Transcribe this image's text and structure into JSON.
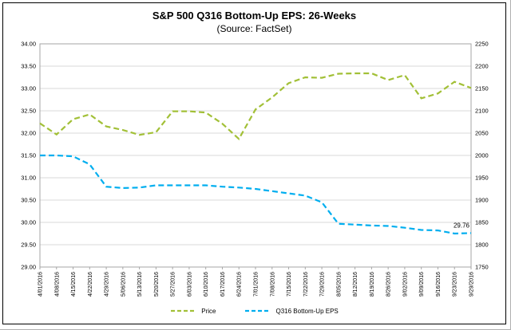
{
  "window": {
    "background": "#FFFFFF",
    "border_color": "#000000"
  },
  "chart_data": {
    "type": "line",
    "title": "S&P 500 Q316 Bottom-Up EPS: 26-Weeks",
    "subtitle": "(Source: FactSet)",
    "x": [
      "4/01/2016",
      "4/08/2016",
      "4/15/2016",
      "4/22/2016",
      "4/29/2016",
      "5/06/2016",
      "5/13/2016",
      "5/20/2016",
      "5/27/2016",
      "6/03/2016",
      "6/10/2016",
      "6/17/2016",
      "6/24/2016",
      "7/01/2016",
      "7/08/2016",
      "7/15/2016",
      "7/22/2016",
      "7/29/2016",
      "8/05/2016",
      "8/12/2016",
      "8/19/2016",
      "8/26/2016",
      "9/02/2016",
      "9/09/2016",
      "9/16/2016",
      "9/23/2016",
      "9/29/2016"
    ],
    "series": [
      {
        "name": "Price",
        "axis": "right",
        "color": "#A2C037",
        "line_style": "dashed",
        "values": [
          2072,
          2047,
          2081,
          2092,
          2065,
          2057,
          2046,
          2052,
          2099,
          2099,
          2096,
          2071,
          2037,
          2103,
          2130,
          2162,
          2175,
          2174,
          2183,
          2184,
          2184,
          2169,
          2180,
          2128,
          2139,
          2165,
          2151
        ]
      },
      {
        "name": "Q316 Bottom-Up EPS",
        "axis": "left",
        "color": "#00AEEF",
        "line_style": "dashed",
        "values": [
          31.5,
          31.5,
          31.48,
          31.3,
          30.8,
          30.77,
          30.78,
          30.83,
          30.83,
          30.83,
          30.83,
          30.8,
          30.78,
          30.75,
          30.7,
          30.65,
          30.6,
          30.45,
          29.97,
          29.95,
          29.93,
          29.92,
          29.88,
          29.83,
          29.82,
          29.75,
          29.76
        ]
      }
    ],
    "left_axis": {
      "min": 29.0,
      "max": 34.0,
      "step": 0.5,
      "decimals": 2
    },
    "right_axis": {
      "min": 1750,
      "max": 2250,
      "step": 50,
      "decimals": 0
    },
    "annotation": {
      "text": "29.76",
      "series": "Q316 Bottom-Up EPS",
      "x_index": 26,
      "value": 29.76
    },
    "grid": true,
    "gridline_color": "#D9D9D9",
    "plot_border_color": "#A6A6A6",
    "legend_position": "bottom"
  }
}
